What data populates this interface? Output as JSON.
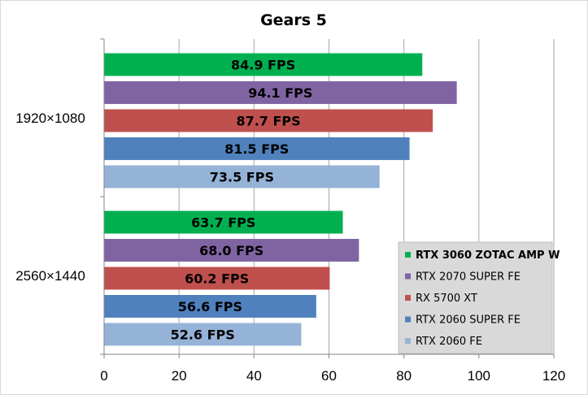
{
  "chart_data": {
    "type": "bar",
    "orientation": "horizontal",
    "title": "Gears 5",
    "xlabel": "",
    "ylabel": "",
    "xlim": [
      0,
      120
    ],
    "x_ticks": [
      0,
      20,
      40,
      60,
      80,
      100,
      120
    ],
    "grid": true,
    "legend_position": "bottom-right",
    "categories": [
      "1920×1080",
      "2560×1440"
    ],
    "series": [
      {
        "name": "RTX 3060 ZOTAC AMP W",
        "color": "#00b050",
        "values": [
          84.9,
          63.7
        ],
        "labels": [
          "84.9 FPS",
          "63.7 FPS"
        ],
        "bold": true
      },
      {
        "name": "RTX 2070 SUPER FE",
        "color": "#8064a2",
        "values": [
          94.1,
          68.0
        ],
        "labels": [
          "94.1 FPS",
          "68.0 FPS"
        ]
      },
      {
        "name": "RX 5700 XT",
        "color": "#c0504d",
        "values": [
          87.7,
          60.2
        ],
        "labels": [
          "87.7 FPS",
          "60.2 FPS"
        ]
      },
      {
        "name": "RTX 2060 SUPER FE",
        "color": "#4f81bd",
        "values": [
          81.5,
          56.6
        ],
        "labels": [
          "81.5 FPS",
          "56.6 FPS"
        ]
      },
      {
        "name": "RTX 2060 FE",
        "color": "#95b3d7",
        "values": [
          73.5,
          52.6
        ],
        "labels": [
          "73.5 FPS",
          "52.6 FPS"
        ]
      }
    ]
  }
}
